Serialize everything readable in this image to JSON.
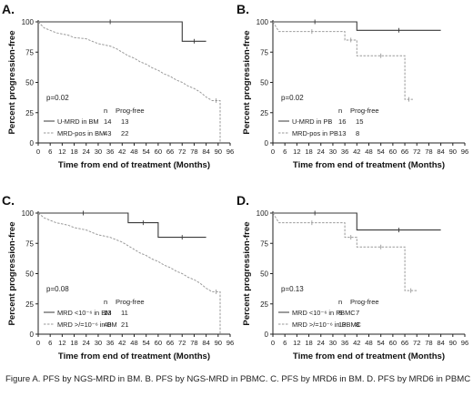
{
  "caption": "Figure A. PFS by NGS-MRD in BM. B. PFS by NGS-MRD in PBMC. C. PFS by MRD6 in BM. D. PFS by MRD6 in PBMC",
  "chart_data": [
    {
      "type": "line",
      "panel_label": "A.",
      "ylabel": "Percent progression-free",
      "xlabel": "Time from end of treatment (Months)",
      "xlim": [
        0,
        96
      ],
      "ylim": [
        0,
        100
      ],
      "xticks": [
        0,
        6,
        12,
        18,
        24,
        30,
        36,
        42,
        48,
        54,
        60,
        66,
        72,
        78,
        84,
        90,
        96
      ],
      "yticks": [
        0,
        25,
        50,
        75,
        100
      ],
      "pvalue": "p=0.02",
      "table_headers": [
        "n",
        "Prog-free"
      ],
      "series": [
        {
          "name": "U-MRD in BM",
          "n": "14",
          "prog_free": "13",
          "style": "solid",
          "x": [
            0,
            72,
            72,
            84
          ],
          "y": [
            100,
            100,
            84,
            84
          ]
        },
        {
          "name": "MRD-pos in BM",
          "n": "43",
          "prog_free": "22",
          "style": "dashed",
          "x": [
            0,
            3,
            6,
            9,
            15,
            18,
            24,
            27,
            30,
            36,
            39,
            42,
            45,
            48,
            51,
            54,
            57,
            60,
            63,
            66,
            69,
            72,
            75,
            78,
            81,
            84,
            87,
            91,
            91
          ],
          "y": [
            100,
            95,
            93,
            91,
            89,
            87,
            86,
            84,
            82,
            80,
            78,
            75,
            72,
            70,
            67,
            65,
            62,
            60,
            57,
            55,
            52,
            50,
            47,
            45,
            42,
            38,
            35,
            35,
            0
          ]
        }
      ]
    },
    {
      "type": "line",
      "panel_label": "B.",
      "ylabel": "Percent progression-free",
      "xlabel": "Time from end of treatment (Months)",
      "xlim": [
        0,
        96
      ],
      "ylim": [
        0,
        100
      ],
      "xticks": [
        0,
        6,
        12,
        18,
        24,
        30,
        36,
        42,
        48,
        54,
        60,
        66,
        72,
        78,
        84,
        90,
        96
      ],
      "yticks": [
        0,
        25,
        50,
        75,
        100
      ],
      "pvalue": "p=0.02",
      "table_headers": [
        "n",
        "Prog-free"
      ],
      "series": [
        {
          "name": "U-MRD in PB",
          "n": "16",
          "prog_free": "15",
          "style": "solid",
          "x": [
            0,
            42,
            42,
            84
          ],
          "y": [
            100,
            100,
            93,
            93
          ]
        },
        {
          "name": "MRD-pos in PB",
          "n": "13",
          "prog_free": "8",
          "style": "dashed",
          "x": [
            0,
            3,
            36,
            36,
            42,
            42,
            66,
            66,
            70
          ],
          "y": [
            100,
            92,
            92,
            85,
            85,
            72,
            72,
            36,
            36
          ]
        }
      ]
    },
    {
      "type": "line",
      "panel_label": "C.",
      "ylabel": "Percent progression-free",
      "xlabel": "Time from end of treatment (Months)",
      "xlim": [
        0,
        96
      ],
      "ylim": [
        0,
        100
      ],
      "xticks": [
        0,
        6,
        12,
        18,
        24,
        30,
        36,
        42,
        48,
        54,
        60,
        66,
        72,
        78,
        84,
        90,
        96
      ],
      "yticks": [
        0,
        25,
        50,
        75,
        100
      ],
      "pvalue": "p=0.08",
      "table_headers": [
        "n",
        "Prog-free"
      ],
      "series": [
        {
          "name": "MRD <10⁻⁶ in BM",
          "n": "13",
          "prog_free": "11",
          "style": "solid",
          "x": [
            0,
            45,
            45,
            60,
            60,
            84
          ],
          "y": [
            100,
            100,
            92,
            92,
            80,
            80
          ]
        },
        {
          "name": "MRD >/=10⁻⁶ in BM",
          "n": "40",
          "prog_free": "21",
          "style": "dashed",
          "x": [
            0,
            3,
            6,
            9,
            15,
            18,
            24,
            27,
            30,
            36,
            39,
            42,
            45,
            48,
            51,
            54,
            57,
            60,
            63,
            66,
            69,
            72,
            75,
            78,
            81,
            84,
            87,
            91,
            91
          ],
          "y": [
            100,
            96,
            94,
            92,
            90,
            88,
            86,
            84,
            82,
            80,
            78,
            76,
            73,
            70,
            67,
            65,
            62,
            60,
            57,
            55,
            52,
            50,
            47,
            45,
            42,
            38,
            35,
            35,
            0
          ]
        }
      ]
    },
    {
      "type": "line",
      "panel_label": "D.",
      "ylabel": "Percent progression-free",
      "xlabel": "Time from end of treatment (Months)",
      "xlim": [
        0,
        96
      ],
      "ylim": [
        0,
        100
      ],
      "xticks": [
        0,
        6,
        12,
        18,
        24,
        30,
        36,
        42,
        48,
        54,
        60,
        66,
        72,
        78,
        84,
        90,
        96
      ],
      "yticks": [
        0,
        25,
        50,
        75,
        100
      ],
      "pvalue": "p=0.13",
      "table_headers": [
        "n",
        "Prog-free"
      ],
      "series": [
        {
          "name": "MRD <10⁻⁶ in PBMC",
          "n": "8",
          "prog_free": "7",
          "style": "solid",
          "x": [
            0,
            42,
            42,
            84
          ],
          "y": [
            100,
            100,
            86,
            86
          ]
        },
        {
          "name": "MRD >/=10⁻⁶ in PBMC",
          "n": "13",
          "prog_free": "8",
          "style": "dashed",
          "x": [
            0,
            3,
            36,
            36,
            42,
            42,
            66,
            66,
            72
          ],
          "y": [
            100,
            92,
            92,
            80,
            80,
            72,
            72,
            36,
            36
          ]
        }
      ]
    }
  ]
}
